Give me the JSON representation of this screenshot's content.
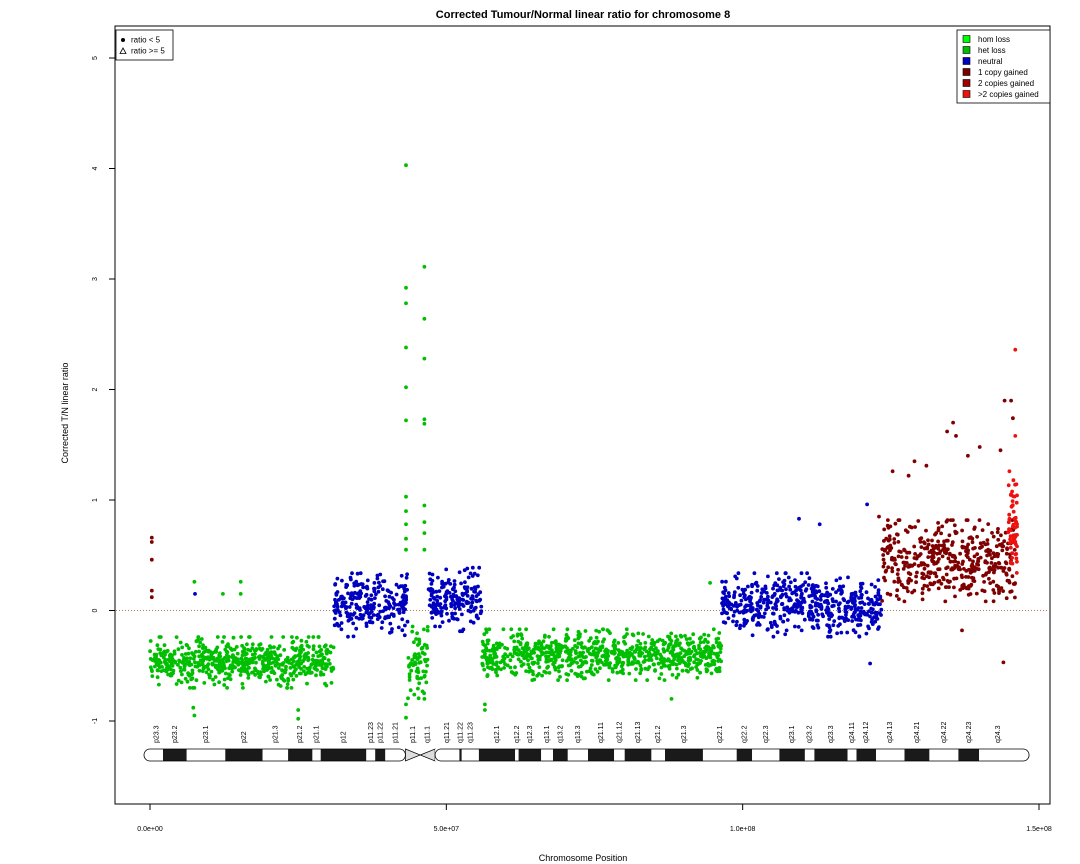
{
  "chart_data": {
    "type": "scatter",
    "title": "Corrected Tumour/Normal linear ratio for chromosome  8",
    "xlabel": "Chromosome Position",
    "ylabel": "Corrected T/N linear ratio",
    "xlim": [
      0,
      150000000
    ],
    "ylim": [
      -1.5,
      5.2
    ],
    "x_ticks": [
      {
        "value": 0,
        "label": "0.0e+00"
      },
      {
        "value": 50000000,
        "label": "5.0e+07"
      },
      {
        "value": 100000000,
        "label": "1.0e+08"
      },
      {
        "value": 150000000,
        "label": "1.5e+08"
      }
    ],
    "y_ticks": [
      {
        "value": -1,
        "label": "-1"
      },
      {
        "value": 0,
        "label": "0"
      },
      {
        "value": 1,
        "label": "1"
      },
      {
        "value": 2,
        "label": "2"
      },
      {
        "value": 3,
        "label": "3"
      },
      {
        "value": 4,
        "label": "4"
      },
      {
        "value": 5,
        "label": "5"
      }
    ],
    "reference_line": {
      "y": 0,
      "style": "dotted",
      "color": "#a0522d"
    },
    "grid": false,
    "point_legend": {
      "position": "top-left",
      "entries": [
        {
          "label": "ratio < 5",
          "marker": "dot"
        },
        {
          "label": "ratio >= 5",
          "marker": "triangle"
        }
      ]
    },
    "state_legend": {
      "position": "top-right",
      "entries": [
        {
          "label": "hom loss",
          "color": "#00ff00"
        },
        {
          "label": "het loss",
          "color": "#00bf00"
        },
        {
          "label": "neutral",
          "color": "#0000bf"
        },
        {
          "label": "1 copy gained",
          "color": "#7f0000"
        },
        {
          "label": "2 copies gained",
          "color": "#9f0000"
        },
        {
          "label": ">2 copies gained",
          "color": "#ef1010"
        }
      ]
    },
    "segments": [
      {
        "state": "het loss",
        "color": "#00bf00",
        "start": 0,
        "end": 31000000,
        "median": -0.47,
        "spread": 0.2
      },
      {
        "state": "neutral",
        "color": "#0000bf",
        "start": 31000000,
        "end": 43500000,
        "median": 0.05,
        "spread": 0.25
      },
      {
        "state": "het loss",
        "color": "#00bf00",
        "start": 43500000,
        "end": 47000000,
        "median": -0.45,
        "spread": 0.3
      },
      {
        "state": "neutral",
        "color": "#0000bf",
        "start": 47000000,
        "end": 56000000,
        "median": 0.1,
        "spread": 0.25
      },
      {
        "state": "het loss",
        "color": "#00bf00",
        "start": 56000000,
        "end": 96500000,
        "median": -0.4,
        "spread": 0.2
      },
      {
        "state": "neutral",
        "color": "#0000bf",
        "start": 96500000,
        "end": 123500000,
        "median": 0.05,
        "spread": 0.25
      },
      {
        "state": "1 copy gained",
        "color": "#7f0000",
        "start": 123500000,
        "end": 146000000,
        "median": 0.45,
        "spread": 0.32
      },
      {
        "state": ">2 copies gained",
        "color": "#ef1010",
        "start": 144800000,
        "end": 146300000,
        "median": 0.8,
        "spread": 0.4
      }
    ],
    "outliers": [
      {
        "x": 300000,
        "y": 0.66,
        "color": "#7f0000"
      },
      {
        "x": 300000,
        "y": 0.62,
        "color": "#7f0000"
      },
      {
        "x": 300000,
        "y": 0.46,
        "color": "#7f0000"
      },
      {
        "x": 300000,
        "y": 0.18,
        "color": "#7f0000"
      },
      {
        "x": 300000,
        "y": 0.12,
        "color": "#7f0000"
      },
      {
        "x": 43200000,
        "y": 4.03,
        "color": "#00bf00"
      },
      {
        "x": 43200000,
        "y": 2.92,
        "color": "#00bf00"
      },
      {
        "x": 43200000,
        "y": 2.78,
        "color": "#00bf00"
      },
      {
        "x": 43200000,
        "y": 2.38,
        "color": "#00bf00"
      },
      {
        "x": 43200000,
        "y": 2.02,
        "color": "#00bf00"
      },
      {
        "x": 43200000,
        "y": 1.72,
        "color": "#00bf00"
      },
      {
        "x": 43200000,
        "y": 1.03,
        "color": "#00bf00"
      },
      {
        "x": 43200000,
        "y": 0.9,
        "color": "#00bf00"
      },
      {
        "x": 43200000,
        "y": 0.78,
        "color": "#00bf00"
      },
      {
        "x": 43200000,
        "y": 0.65,
        "color": "#00bf00"
      },
      {
        "x": 43200000,
        "y": 0.55,
        "color": "#00bf00"
      },
      {
        "x": 43200000,
        "y": -0.85,
        "color": "#00bf00"
      },
      {
        "x": 43200000,
        "y": -0.97,
        "color": "#00bf00"
      },
      {
        "x": 46300000,
        "y": 3.11,
        "color": "#00bf00"
      },
      {
        "x": 46300000,
        "y": 2.64,
        "color": "#00bf00"
      },
      {
        "x": 46300000,
        "y": 2.28,
        "color": "#00bf00"
      },
      {
        "x": 46300000,
        "y": 1.73,
        "color": "#00bf00"
      },
      {
        "x": 46300000,
        "y": 1.69,
        "color": "#00bf00"
      },
      {
        "x": 46300000,
        "y": 0.95,
        "color": "#00bf00"
      },
      {
        "x": 46300000,
        "y": 0.8,
        "color": "#00bf00"
      },
      {
        "x": 46300000,
        "y": 0.7,
        "color": "#00bf00"
      },
      {
        "x": 46300000,
        "y": 0.55,
        "color": "#00bf00"
      },
      {
        "x": 46300000,
        "y": -0.8,
        "color": "#00bf00"
      },
      {
        "x": 46300000,
        "y": -0.6,
        "color": "#00bf00"
      },
      {
        "x": 7500000,
        "y": 0.26,
        "color": "#00bf00"
      },
      {
        "x": 7600000,
        "y": 0.15,
        "color": "#0000bf"
      },
      {
        "x": 7500000,
        "y": -0.95,
        "color": "#00bf00"
      },
      {
        "x": 7300000,
        "y": -0.88,
        "color": "#00bf00"
      },
      {
        "x": 12300000,
        "y": 0.15,
        "color": "#00bf00"
      },
      {
        "x": 15300000,
        "y": 0.26,
        "color": "#00bf00"
      },
      {
        "x": 15300000,
        "y": 0.15,
        "color": "#00bf00"
      },
      {
        "x": 25000000,
        "y": -0.9,
        "color": "#00bf00"
      },
      {
        "x": 25000000,
        "y": -0.98,
        "color": "#00bf00"
      },
      {
        "x": 56500000,
        "y": -0.85,
        "color": "#00bf00"
      },
      {
        "x": 56500000,
        "y": -0.9,
        "color": "#00bf00"
      },
      {
        "x": 88000000,
        "y": -0.8,
        "color": "#00bf00"
      },
      {
        "x": 94500000,
        "y": 0.25,
        "color": "#00bf00"
      },
      {
        "x": 109500000,
        "y": 0.83,
        "color": "#0000bf"
      },
      {
        "x": 113000000,
        "y": 0.78,
        "color": "#0000bf"
      },
      {
        "x": 121000000,
        "y": 0.96,
        "color": "#0000bf"
      },
      {
        "x": 121500000,
        "y": -0.48,
        "color": "#0000bf"
      },
      {
        "x": 123000000,
        "y": 0.85,
        "color": "#7f0000"
      },
      {
        "x": 125300000,
        "y": 1.26,
        "color": "#7f0000"
      },
      {
        "x": 128000000,
        "y": 1.22,
        "color": "#7f0000"
      },
      {
        "x": 129000000,
        "y": 1.35,
        "color": "#7f0000"
      },
      {
        "x": 131000000,
        "y": 1.31,
        "color": "#7f0000"
      },
      {
        "x": 134500000,
        "y": 1.62,
        "color": "#7f0000"
      },
      {
        "x": 135500000,
        "y": 1.7,
        "color": "#7f0000"
      },
      {
        "x": 136000000,
        "y": 1.58,
        "color": "#7f0000"
      },
      {
        "x": 138000000,
        "y": 1.4,
        "color": "#7f0000"
      },
      {
        "x": 140000000,
        "y": 1.48,
        "color": "#7f0000"
      },
      {
        "x": 143500000,
        "y": 1.45,
        "color": "#7f0000"
      },
      {
        "x": 144200000,
        "y": 1.9,
        "color": "#7f0000"
      },
      {
        "x": 145300000,
        "y": 1.9,
        "color": "#7f0000"
      },
      {
        "x": 145600000,
        "y": 1.74,
        "color": "#7f0000"
      },
      {
        "x": 137000000,
        "y": -0.18,
        "color": "#7f0000"
      },
      {
        "x": 144000000,
        "y": -0.47,
        "color": "#7f0000"
      },
      {
        "x": 146000000,
        "y": 2.36,
        "color": "#ef1010"
      },
      {
        "x": 146000000,
        "y": 1.58,
        "color": "#ef1010"
      }
    ],
    "ideogram": {
      "bands": [
        {
          "label": "p23.3",
          "start": 0,
          "end": 2200000,
          "stain": "gneg"
        },
        {
          "label": "p23.2",
          "start": 2200000,
          "end": 6200000,
          "stain": "gpos"
        },
        {
          "label": "p23.1",
          "start": 6200000,
          "end": 12700000,
          "stain": "gneg"
        },
        {
          "label": "p22",
          "start": 12700000,
          "end": 19000000,
          "stain": "gpos"
        },
        {
          "label": "p21.3",
          "start": 19000000,
          "end": 23300000,
          "stain": "gneg"
        },
        {
          "label": "p21.2",
          "start": 23300000,
          "end": 27400000,
          "stain": "gpos"
        },
        {
          "label": "p21.1",
          "start": 27400000,
          "end": 28800000,
          "stain": "gneg"
        },
        {
          "label": "p12",
          "start": 28800000,
          "end": 36500000,
          "stain": "gpos"
        },
        {
          "label": "p11.23",
          "start": 36500000,
          "end": 38000000,
          "stain": "gneg"
        },
        {
          "label": "p11.22",
          "start": 38000000,
          "end": 39700000,
          "stain": "gpos"
        },
        {
          "label": "p11.21",
          "start": 39700000,
          "end": 43100000,
          "stain": "gneg"
        },
        {
          "label": "p11.1",
          "start": 43100000,
          "end": 45600000,
          "stain": "acen"
        },
        {
          "label": "q11.1",
          "start": 45600000,
          "end": 48100000,
          "stain": "acen"
        },
        {
          "label": "q11.21",
          "start": 48100000,
          "end": 52200000,
          "stain": "gneg"
        },
        {
          "label": "q11.22",
          "start": 52200000,
          "end": 52600000,
          "stain": "gpos"
        },
        {
          "label": "q11.23",
          "start": 52600000,
          "end": 55500000,
          "stain": "gneg"
        },
        {
          "label": "q12.1",
          "start": 55500000,
          "end": 61600000,
          "stain": "gpos"
        },
        {
          "label": "q12.2",
          "start": 61600000,
          "end": 62200000,
          "stain": "gneg"
        },
        {
          "label": "q12.3",
          "start": 62200000,
          "end": 66000000,
          "stain": "gpos"
        },
        {
          "label": "q13.1",
          "start": 66000000,
          "end": 68000000,
          "stain": "gneg"
        },
        {
          "label": "q13.2",
          "start": 68000000,
          "end": 70500000,
          "stain": "gpos"
        },
        {
          "label": "q13.3",
          "start": 70500000,
          "end": 73900000,
          "stain": "gneg"
        },
        {
          "label": "q21.11",
          "start": 73900000,
          "end": 78300000,
          "stain": "gpos"
        },
        {
          "label": "q21.12",
          "start": 78300000,
          "end": 80100000,
          "stain": "gneg"
        },
        {
          "label": "q21.13",
          "start": 80100000,
          "end": 84600000,
          "stain": "gpos"
        },
        {
          "label": "q21.2",
          "start": 84600000,
          "end": 86900000,
          "stain": "gneg"
        },
        {
          "label": "q21.3",
          "start": 86900000,
          "end": 93300000,
          "stain": "gpos"
        },
        {
          "label": "q22.1",
          "start": 93300000,
          "end": 99000000,
          "stain": "gneg"
        },
        {
          "label": "q22.2",
          "start": 99000000,
          "end": 101600000,
          "stain": "gpos"
        },
        {
          "label": "q22.3",
          "start": 101600000,
          "end": 106200000,
          "stain": "gneg"
        },
        {
          "label": "q23.1",
          "start": 106200000,
          "end": 110500000,
          "stain": "gpos"
        },
        {
          "label": "q23.2",
          "start": 110500000,
          "end": 112100000,
          "stain": "gneg"
        },
        {
          "label": "q23.3",
          "start": 112100000,
          "end": 117700000,
          "stain": "gpos"
        },
        {
          "label": "q24.11",
          "start": 117700000,
          "end": 119200000,
          "stain": "gneg"
        },
        {
          "label": "q24.12",
          "start": 119200000,
          "end": 122500000,
          "stain": "gpos"
        },
        {
          "label": "q24.13",
          "start": 122500000,
          "end": 127300000,
          "stain": "gneg"
        },
        {
          "label": "q24.21",
          "start": 127300000,
          "end": 131500000,
          "stain": "gpos"
        },
        {
          "label": "q24.22",
          "start": 131500000,
          "end": 136400000,
          "stain": "gneg"
        },
        {
          "label": "q24.23",
          "start": 136400000,
          "end": 139900000,
          "stain": "gpos"
        },
        {
          "label": "q24.3",
          "start": 139900000,
          "end": 146300000,
          "stain": "gneg"
        }
      ]
    }
  }
}
